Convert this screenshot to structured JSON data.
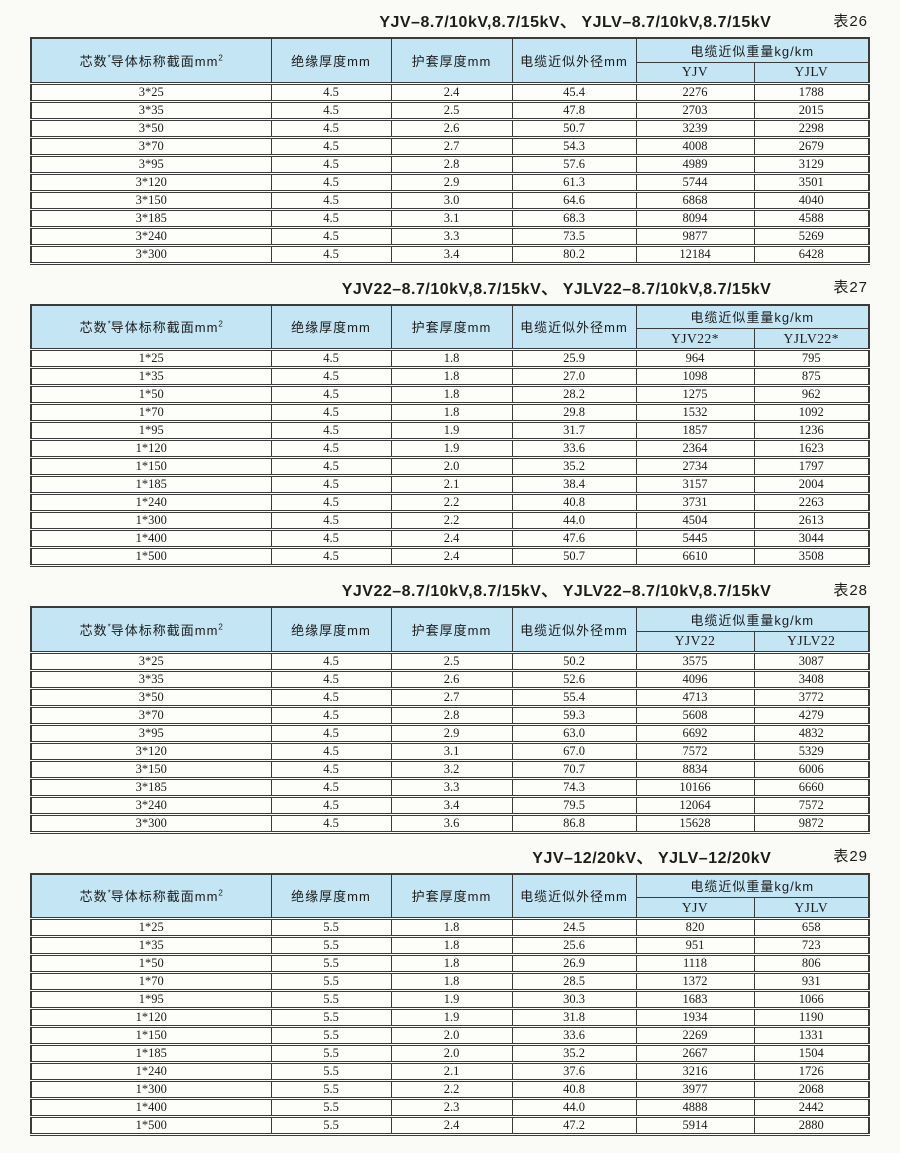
{
  "colors": {
    "page_bg": "#fafaf7",
    "header_bg": "#c4e5f3",
    "border": "#3b3b3b",
    "text": "#1c1c1c"
  },
  "headers": {
    "spec_main": "芯数",
    "spec_sup": "*",
    "spec_rest": "导体标称截面mm",
    "spec_sup2": "2",
    "insulation": "绝缘厚度mm",
    "sheath": "护套厚度mm",
    "diameter": "电缆近似外径mm",
    "weight": "电缆近似重量kg/km"
  },
  "tables": [
    {
      "title": "YJV–8.7/10kV,8.7/15kV、 YJLV–8.7/10kV,8.7/15kV",
      "label": "表26",
      "sub_headers": [
        "YJV",
        "YJLV"
      ],
      "rows": [
        [
          "3*25",
          "4.5",
          "2.4",
          "45.4",
          "2276",
          "1788"
        ],
        [
          "3*35",
          "4.5",
          "2.5",
          "47.8",
          "2703",
          "2015"
        ],
        [
          "3*50",
          "4.5",
          "2.6",
          "50.7",
          "3239",
          "2298"
        ],
        [
          "3*70",
          "4.5",
          "2.7",
          "54.3",
          "4008",
          "2679"
        ],
        [
          "3*95",
          "4.5",
          "2.8",
          "57.6",
          "4989",
          "3129"
        ],
        [
          "3*120",
          "4.5",
          "2.9",
          "61.3",
          "5744",
          "3501"
        ],
        [
          "3*150",
          "4.5",
          "3.0",
          "64.6",
          "6868",
          "4040"
        ],
        [
          "3*185",
          "4.5",
          "3.1",
          "68.3",
          "8094",
          "4588"
        ],
        [
          "3*240",
          "4.5",
          "3.3",
          "73.5",
          "9877",
          "5269"
        ],
        [
          "3*300",
          "4.5",
          "3.4",
          "80.2",
          "12184",
          "6428"
        ]
      ]
    },
    {
      "title": "YJV22–8.7/10kV,8.7/15kV、 YJLV22–8.7/10kV,8.7/15kV",
      "label": "表27",
      "sub_headers": [
        "YJV22*",
        "YJLV22*"
      ],
      "rows": [
        [
          "1*25",
          "4.5",
          "1.8",
          "25.9",
          "964",
          "795"
        ],
        [
          "1*35",
          "4.5",
          "1.8",
          "27.0",
          "1098",
          "875"
        ],
        [
          "1*50",
          "4.5",
          "1.8",
          "28.2",
          "1275",
          "962"
        ],
        [
          "1*70",
          "4.5",
          "1.8",
          "29.8",
          "1532",
          "1092"
        ],
        [
          "1*95",
          "4.5",
          "1.9",
          "31.7",
          "1857",
          "1236"
        ],
        [
          "1*120",
          "4.5",
          "1.9",
          "33.6",
          "2364",
          "1623"
        ],
        [
          "1*150",
          "4.5",
          "2.0",
          "35.2",
          "2734",
          "1797"
        ],
        [
          "1*185",
          "4.5",
          "2.1",
          "38.4",
          "3157",
          "2004"
        ],
        [
          "1*240",
          "4.5",
          "2.2",
          "40.8",
          "3731",
          "2263"
        ],
        [
          "1*300",
          "4.5",
          "2.2",
          "44.0",
          "4504",
          "2613"
        ],
        [
          "1*400",
          "4.5",
          "2.4",
          "47.6",
          "5445",
          "3044"
        ],
        [
          "1*500",
          "4.5",
          "2.4",
          "50.7",
          "6610",
          "3508"
        ]
      ]
    },
    {
      "title": "YJV22–8.7/10kV,8.7/15kV、 YJLV22–8.7/10kV,8.7/15kV",
      "label": "表28",
      "sub_headers": [
        "YJV22",
        "YJLV22"
      ],
      "rows": [
        [
          "3*25",
          "4.5",
          "2.5",
          "50.2",
          "3575",
          "3087"
        ],
        [
          "3*35",
          "4.5",
          "2.6",
          "52.6",
          "4096",
          "3408"
        ],
        [
          "3*50",
          "4.5",
          "2.7",
          "55.4",
          "4713",
          "3772"
        ],
        [
          "3*70",
          "4.5",
          "2.8",
          "59.3",
          "5608",
          "4279"
        ],
        [
          "3*95",
          "4.5",
          "2.9",
          "63.0",
          "6692",
          "4832"
        ],
        [
          "3*120",
          "4.5",
          "3.1",
          "67.0",
          "7572",
          "5329"
        ],
        [
          "3*150",
          "4.5",
          "3.2",
          "70.7",
          "8834",
          "6006"
        ],
        [
          "3*185",
          "4.5",
          "3.3",
          "74.3",
          "10166",
          "6660"
        ],
        [
          "3*240",
          "4.5",
          "3.4",
          "79.5",
          "12064",
          "7572"
        ],
        [
          "3*300",
          "4.5",
          "3.6",
          "86.8",
          "15628",
          "9872"
        ]
      ]
    },
    {
      "title": "YJV–12/20kV、 YJLV–12/20kV",
      "label": "表29",
      "sub_headers": [
        "YJV",
        "YJLV"
      ],
      "rows": [
        [
          "1*25",
          "5.5",
          "1.8",
          "24.5",
          "820",
          "658"
        ],
        [
          "1*35",
          "5.5",
          "1.8",
          "25.6",
          "951",
          "723"
        ],
        [
          "1*50",
          "5.5",
          "1.8",
          "26.9",
          "1118",
          "806"
        ],
        [
          "1*70",
          "5.5",
          "1.8",
          "28.5",
          "1372",
          "931"
        ],
        [
          "1*95",
          "5.5",
          "1.9",
          "30.3",
          "1683",
          "1066"
        ],
        [
          "1*120",
          "5.5",
          "1.9",
          "31.8",
          "1934",
          "1190"
        ],
        [
          "1*150",
          "5.5",
          "2.0",
          "33.6",
          "2269",
          "1331"
        ],
        [
          "1*185",
          "5.5",
          "2.0",
          "35.2",
          "2667",
          "1504"
        ],
        [
          "1*240",
          "5.5",
          "2.1",
          "37.6",
          "3216",
          "1726"
        ],
        [
          "1*300",
          "5.5",
          "2.2",
          "40.8",
          "3977",
          "2068"
        ],
        [
          "1*400",
          "5.5",
          "2.3",
          "44.0",
          "4888",
          "2442"
        ],
        [
          "1*500",
          "5.5",
          "2.4",
          "47.2",
          "5914",
          "2880"
        ]
      ]
    }
  ]
}
